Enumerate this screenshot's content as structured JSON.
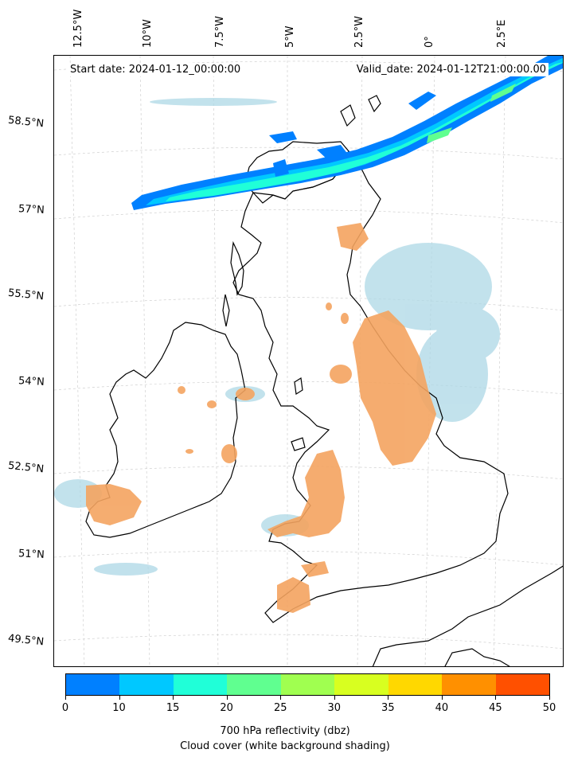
{
  "map": {
    "start_date": "Start date: 2024-01-12_00:00:00",
    "valid_date": "Valid_date: 2024-01-12T21:00:00.00",
    "longitude_labels": [
      "12.5°W",
      "10°W",
      "7.5°W",
      "5°W",
      "2.5°W",
      "0°",
      "2.5°E"
    ],
    "latitude_labels": [
      "58.5°N",
      "57°N",
      "55.5°N",
      "54°N",
      "52.5°N",
      "51°N",
      "49.5°N"
    ],
    "coastline_color": "#000000",
    "gridline_color": "#c8c8c8",
    "cloud_color": "#add8e6",
    "precip_color": "#f4a460"
  },
  "colorbar": {
    "ticks": [
      "0",
      "10",
      "15",
      "20",
      "25",
      "30",
      "35",
      "40",
      "45",
      "50"
    ],
    "colors": [
      "#0080ff",
      "#00c8ff",
      "#20ffd8",
      "#60ff90",
      "#a0ff50",
      "#d8ff20",
      "#ffd800",
      "#ff9000",
      "#ff5000"
    ],
    "label": "700 hPa reflectivity (dbz)",
    "sublabel": "Cloud cover (white background shading)"
  }
}
